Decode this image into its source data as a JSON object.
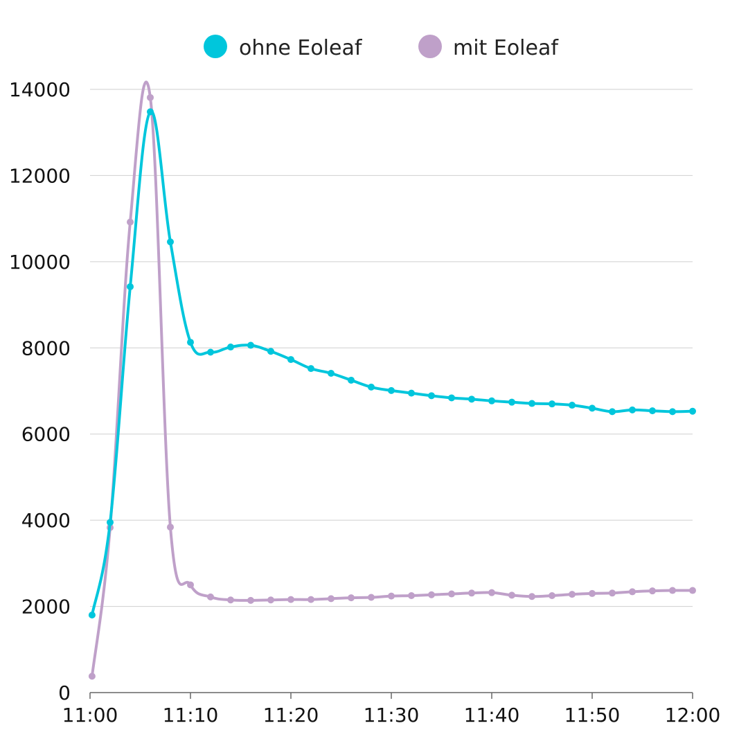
{
  "chart_data": {
    "type": "line",
    "title": "",
    "xlabel": "",
    "ylabel": "",
    "x_tick_labels": [
      "11:00",
      "11:10",
      "11:20",
      "11:30",
      "11:40",
      "11:50",
      "12:00"
    ],
    "x_tick_values": [
      0,
      10,
      20,
      30,
      40,
      50,
      60
    ],
    "xlim": [
      0,
      60
    ],
    "ylim": [
      0,
      14000
    ],
    "y_ticks": [
      0,
      2000,
      4000,
      6000,
      8000,
      10000,
      12000,
      14000
    ],
    "grid": true,
    "legend_position": "top-center",
    "x": [
      0.2,
      2,
      4,
      6,
      8,
      10,
      12,
      14,
      16,
      18,
      20,
      22,
      24,
      26,
      28,
      30,
      32,
      34,
      36,
      38,
      40,
      42,
      44,
      46,
      48,
      50,
      52,
      54,
      56,
      58,
      60
    ],
    "series": [
      {
        "name": "ohne Eoleaf",
        "color": "#00C6DC",
        "values": [
          1800,
          3950,
          9420,
          13480,
          10460,
          8130,
          7900,
          8020,
          8060,
          7920,
          7730,
          7520,
          7410,
          7250,
          7090,
          7010,
          6950,
          6890,
          6840,
          6810,
          6770,
          6740,
          6710,
          6700,
          6670,
          6600,
          6520,
          6560,
          6540,
          6520,
          6530
        ]
      },
      {
        "name": "mit Eoleaf",
        "color": "#BFA0C9",
        "values": [
          380,
          3830,
          10920,
          13810,
          3840,
          2500,
          2220,
          2150,
          2140,
          2150,
          2160,
          2160,
          2180,
          2200,
          2210,
          2240,
          2250,
          2270,
          2290,
          2310,
          2320,
          2260,
          2230,
          2250,
          2280,
          2300,
          2310,
          2340,
          2360,
          2370,
          2370
        ]
      }
    ]
  }
}
